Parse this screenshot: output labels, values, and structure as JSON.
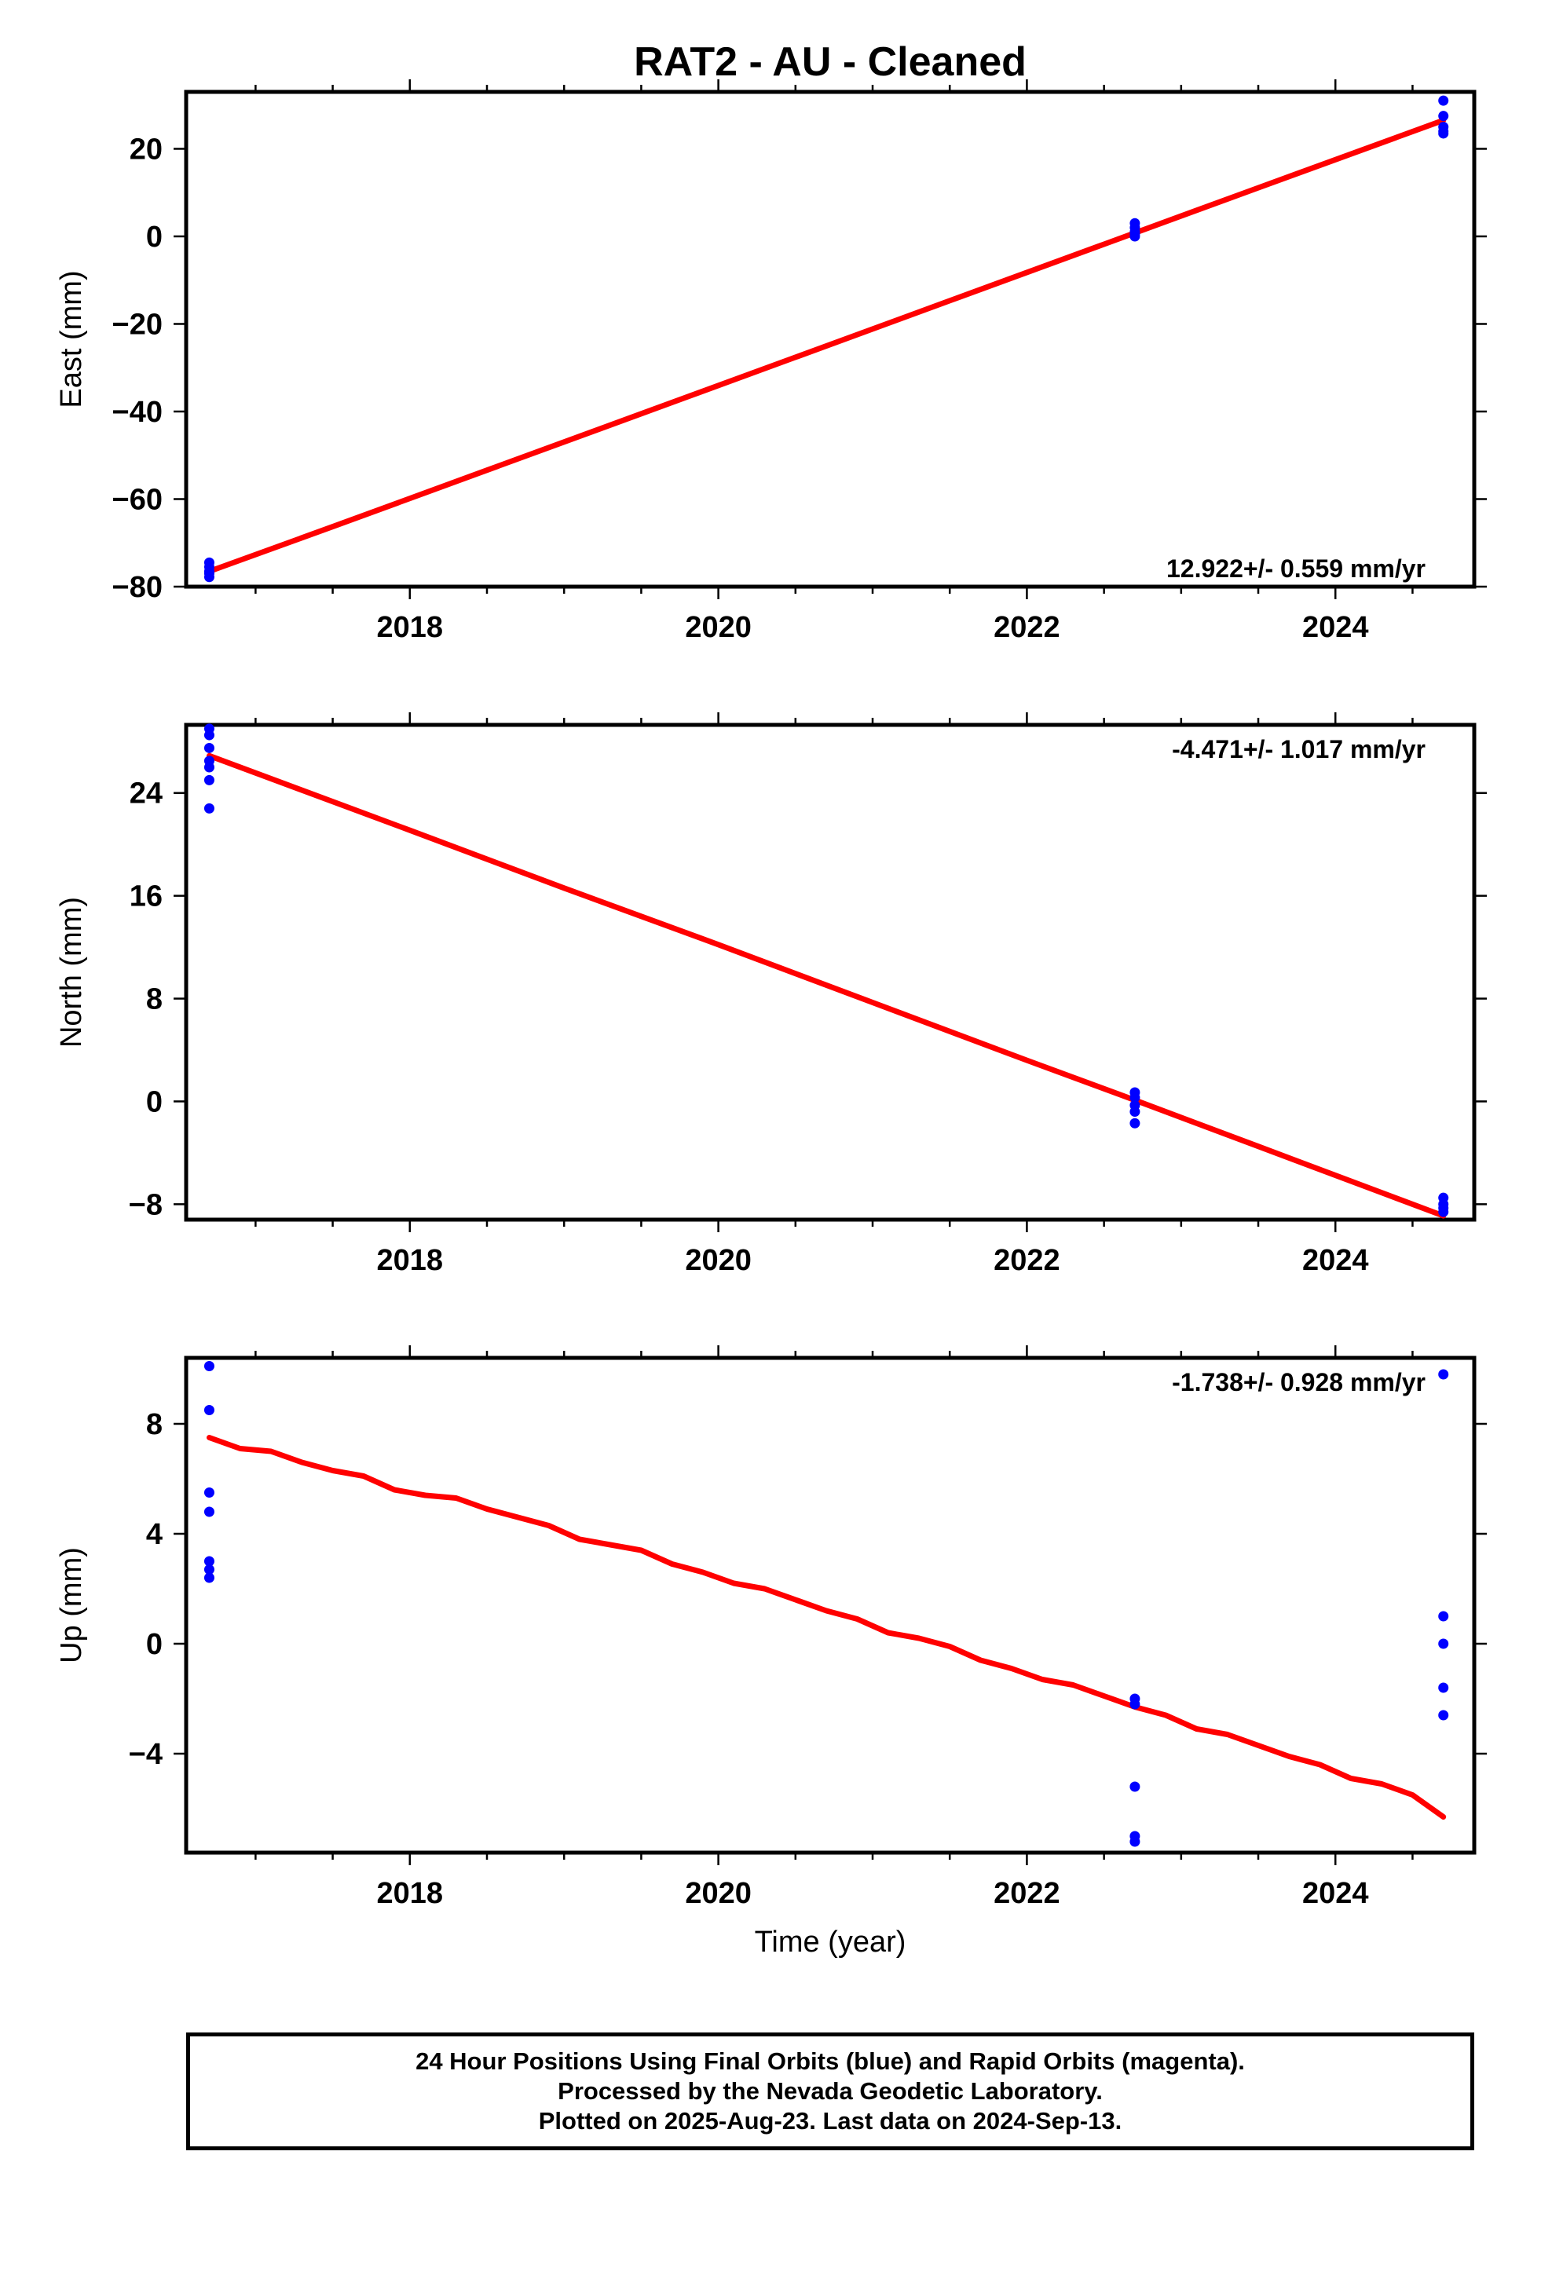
{
  "page_title": "RAT2  - AU - Cleaned",
  "footer": {
    "line1": "24 Hour Positions Using Final Orbits (blue) and Rapid Orbits (magenta).",
    "line2": "Processed by the Nevada Geodetic Laboratory.",
    "line3": "Plotted on 2025-Aug-23. Last data on 2024-Sep-13."
  },
  "colors": {
    "final_orbits": "#0000ff",
    "model": "#ff0000",
    "axes": "#000000"
  },
  "chart_data": [
    {
      "type": "scatter",
      "ylabel": "East (mm)",
      "xlabel": "",
      "rate_label": "12.922+/- 0.559 mm/yr",
      "rate_position": "bottom-right",
      "xlim": [
        2016.55,
        2024.9
      ],
      "ylim": [
        -80,
        33
      ],
      "x_ticks": [
        2018,
        2020,
        2022,
        2024
      ],
      "y_ticks": [
        20,
        0,
        -20,
        -40,
        -60,
        -80
      ],
      "y_tick_labels": [
        "20",
        "0",
        "−20",
        "−40",
        "−60",
        "−80"
      ],
      "grid": false,
      "series": [
        {
          "type": "scatter",
          "x": [
            2016.7,
            2016.7,
            2016.7,
            2016.7,
            2016.7,
            2022.7,
            2022.7,
            2022.7,
            2022.7,
            2022.7,
            2024.7,
            2024.7,
            2024.7,
            2024.7,
            2024.7
          ],
          "y": [
            -74.5,
            -75.5,
            -76.5,
            -77.0,
            -77.8,
            3.0,
            2.0,
            1.0,
            0.5,
            0.0,
            31.0,
            27.5,
            25.0,
            24.0,
            23.5
          ]
        },
        {
          "type": "line",
          "x": [
            2016.7,
            2017.5,
            2018.5,
            2019.5,
            2020.5,
            2021.5,
            2022.5,
            2023.5,
            2024.7
          ],
          "y": [
            -76.5,
            -66.3,
            -53.4,
            -40.5,
            -27.6,
            -14.7,
            -1.8,
            11.1,
            26.5
          ]
        }
      ]
    },
    {
      "type": "scatter",
      "ylabel": "North (mm)",
      "xlabel": "",
      "rate_label": "-4.471+/- 1.017 mm/yr",
      "rate_position": "top-right",
      "xlim": [
        2016.55,
        2024.9
      ],
      "ylim": [
        -9.2,
        29.3
      ],
      "x_ticks": [
        2018,
        2020,
        2022,
        2024
      ],
      "y_ticks": [
        24,
        16,
        8,
        0,
        -8
      ],
      "y_tick_labels": [
        "24",
        "16",
        "8",
        "0",
        "−8"
      ],
      "grid": false,
      "series": [
        {
          "type": "scatter",
          "x": [
            2016.7,
            2016.7,
            2016.7,
            2016.7,
            2016.7,
            2016.7,
            2016.7,
            2022.7,
            2022.7,
            2022.7,
            2022.7,
            2022.7,
            2024.7,
            2024.7,
            2024.7,
            2024.7
          ],
          "y": [
            29.0,
            28.5,
            27.5,
            26.5,
            26.0,
            25.0,
            22.8,
            0.7,
            0.3,
            -0.3,
            -0.8,
            -1.7,
            -7.5,
            -8.0,
            -8.3,
            -8.6
          ]
        },
        {
          "type": "line",
          "x": [
            2016.7,
            2018.0,
            2019.0,
            2020.0,
            2021.0,
            2022.0,
            2022.7,
            2023.5,
            2024.7
          ],
          "y": [
            26.9,
            21.1,
            16.6,
            12.2,
            7.7,
            3.2,
            0.1,
            -3.5,
            -8.9
          ]
        }
      ]
    },
    {
      "type": "scatter",
      "ylabel": "Up (mm)",
      "xlabel": "Time (year)",
      "rate_label": "-1.738+/- 0.928 mm/yr",
      "rate_position": "top-right",
      "xlim": [
        2016.55,
        2024.9
      ],
      "ylim": [
        -7.6,
        10.4
      ],
      "x_ticks": [
        2018,
        2020,
        2022,
        2024
      ],
      "y_ticks": [
        8,
        4,
        0,
        -4
      ],
      "y_tick_labels": [
        "8",
        "4",
        "0",
        "−4"
      ],
      "grid": false,
      "series": [
        {
          "type": "scatter",
          "x": [
            2016.7,
            2016.7,
            2016.7,
            2016.7,
            2016.7,
            2016.7,
            2016.7,
            2022.7,
            2022.7,
            2022.7,
            2022.7,
            2022.7,
            2024.7,
            2024.7,
            2024.7,
            2024.7,
            2024.7
          ],
          "y": [
            10.1,
            8.5,
            5.5,
            4.8,
            3.0,
            2.7,
            2.4,
            -2.0,
            -2.2,
            -5.2,
            -7.0,
            -7.2,
            9.8,
            1.0,
            0.0,
            -1.6,
            -2.6
          ]
        },
        {
          "type": "line",
          "x": [
            2016.7,
            2016.9,
            2017.1,
            2017.3,
            2017.5,
            2017.7,
            2017.9,
            2018.1,
            2018.3,
            2018.5,
            2018.7,
            2018.9,
            2019.1,
            2019.3,
            2019.5,
            2019.7,
            2019.9,
            2020.1,
            2020.3,
            2020.5,
            2020.7,
            2020.9,
            2021.1,
            2021.3,
            2021.5,
            2021.7,
            2021.9,
            2022.1,
            2022.3,
            2022.5,
            2022.7,
            2022.9,
            2023.1,
            2023.3,
            2023.5,
            2023.7,
            2023.9,
            2024.1,
            2024.3,
            2024.5,
            2024.7
          ],
          "y": [
            7.5,
            7.1,
            7.0,
            6.6,
            6.3,
            6.1,
            5.6,
            5.4,
            5.3,
            4.9,
            4.6,
            4.3,
            3.8,
            3.6,
            3.4,
            2.9,
            2.6,
            2.2,
            2.0,
            1.6,
            1.2,
            0.9,
            0.4,
            0.2,
            -0.1,
            -0.6,
            -0.9,
            -1.3,
            -1.5,
            -1.9,
            -2.3,
            -2.6,
            -3.1,
            -3.3,
            -3.7,
            -4.1,
            -4.4,
            -4.9,
            -5.1,
            -5.5,
            -6.3
          ]
        }
      ]
    }
  ]
}
